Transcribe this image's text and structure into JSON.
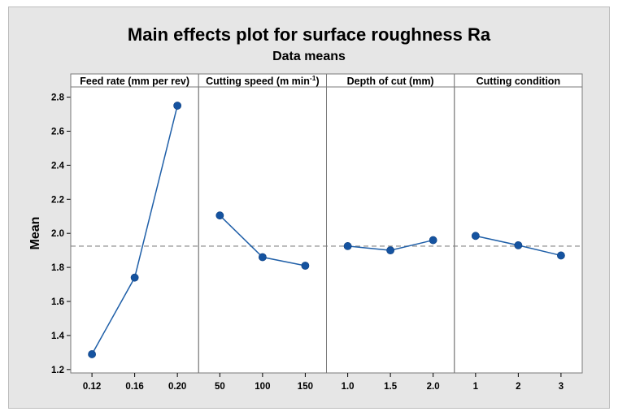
{
  "chart_data": {
    "type": "line",
    "title": "Main effects plot for surface roughness Ra",
    "subtitle": "Data means",
    "ylabel": "Mean",
    "ylim": [
      1.18,
      2.86
    ],
    "yticks": [
      "1.2",
      "1.4",
      "1.6",
      "1.8",
      "2.0",
      "2.2",
      "2.4",
      "2.6",
      "2.8"
    ],
    "reference_line": 1.925,
    "colors": {
      "series": "#1f5fa8",
      "marker": "#1553a0",
      "reference": "#9a9a9a",
      "background": "#e6e6e6"
    },
    "panels": [
      {
        "label": "Feed rate (mm per rev)",
        "categories": [
          "0.12",
          "0.16",
          "0.20"
        ],
        "values": [
          1.29,
          1.74,
          2.75
        ]
      },
      {
        "label": "Cutting speed (m min",
        "label_superscript": "-1",
        "label_suffix": ")",
        "categories": [
          "50",
          "100",
          "150"
        ],
        "values": [
          2.105,
          1.86,
          1.81
        ]
      },
      {
        "label": "Depth of cut (mm)",
        "categories": [
          "1.0",
          "1.5",
          "2.0"
        ],
        "values": [
          1.925,
          1.9,
          1.96
        ]
      },
      {
        "label": "Cutting condition",
        "categories": [
          "1",
          "2",
          "3"
        ],
        "values": [
          1.985,
          1.93,
          1.87
        ]
      }
    ]
  }
}
